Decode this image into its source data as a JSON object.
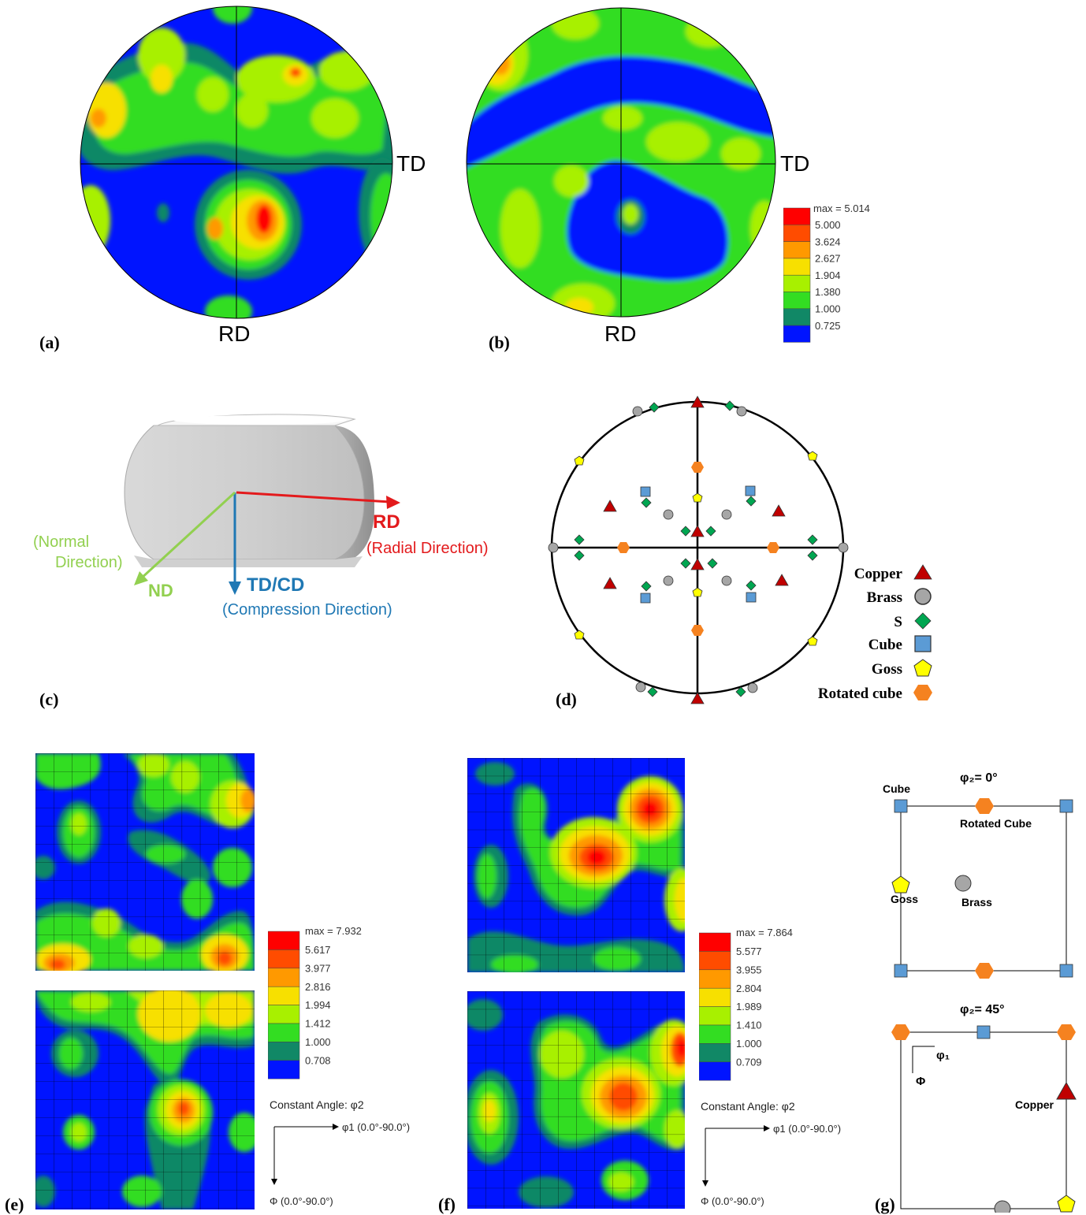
{
  "panel_labels": [
    "(a)",
    "(b)",
    "(c)",
    "(d)",
    "(e)",
    "(f)",
    "(g)"
  ],
  "pole_figures": {
    "td_label": "TD",
    "rd_label": "RD",
    "legend": {
      "max": "max = 5.014",
      "levels": [
        "5.000",
        "3.624",
        "2.627",
        "1.904",
        "1.380",
        "1.000",
        "0.725"
      ],
      "colors": [
        "#ff0000",
        "#ff4c00",
        "#ff9900",
        "#f7e000",
        "#a8f000",
        "#33dd22",
        "#118866",
        "#0014ff"
      ]
    }
  },
  "specimen": {
    "rd": "RD",
    "rd_desc": "(Radial Direction)",
    "nd": "ND",
    "nd_desc_line1": "(Normal",
    "nd_desc_line2": "Direction)",
    "td": "TD/CD",
    "td_desc": "(Compression Direction)",
    "colors": {
      "rd": "#e31a1c",
      "nd": "#92d050",
      "td": "#1f78b4"
    }
  },
  "ideal_legend": {
    "items": [
      {
        "label": "Copper",
        "shape": "triangle",
        "color": "#c00000"
      },
      {
        "label": "Brass",
        "shape": "circle",
        "color": "#a6a6a6"
      },
      {
        "label": "S",
        "shape": "diamond",
        "color": "#00a651"
      },
      {
        "label": "Cube",
        "shape": "square",
        "color": "#5b9bd5"
      },
      {
        "label": "Goss",
        "shape": "pentagon",
        "color": "#ffff00"
      },
      {
        "label": "Rotated cube",
        "shape": "hexagon",
        "color": "#f58220"
      }
    ]
  },
  "odf_e": {
    "legend": {
      "max": "max = 7.932",
      "levels": [
        "5.617",
        "3.977",
        "2.816",
        "1.994",
        "1.412",
        "1.000",
        "0.708"
      ]
    },
    "constant_angle": "Constant Angle: φ2",
    "phi1_axis": "φ1 (0.0°-90.0°)",
    "Phi_axis": "Φ (0.0°-90.0°)"
  },
  "odf_f": {
    "legend": {
      "max": "max = 7.864",
      "levels": [
        "5.577",
        "3.955",
        "2.804",
        "1.989",
        "1.410",
        "1.000",
        "0.709"
      ]
    },
    "constant_angle": "Constant Angle: φ2",
    "phi1_axis": "φ1 (0.0°-90.0°)",
    "Phi_axis": "Φ (0.0°-90.0°)"
  },
  "odf_key": {
    "sec0_title": "φ₂= 0°",
    "sec45_title": "φ₂= 45°",
    "cube": "Cube",
    "rotated_cube": "Rotated Cube",
    "goss": "Goss",
    "brass": "Brass",
    "copper": "Copper",
    "phi1": "φ₁",
    "Phi": "Φ"
  }
}
